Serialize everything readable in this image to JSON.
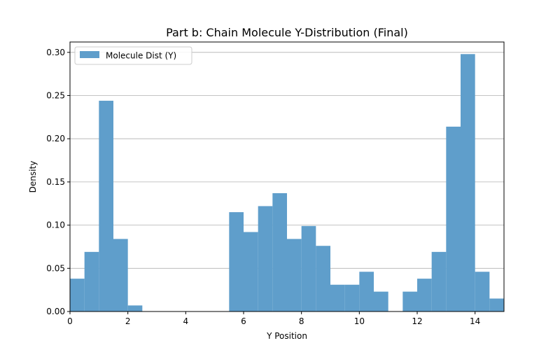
{
  "chart_data": {
    "type": "bar",
    "title": "Part b: Chain Molecule Y-Distribution (Final)",
    "xlabel": "Y Position",
    "ylabel": "Density",
    "xlim": [
      0,
      15
    ],
    "ylim": [
      0,
      0.312
    ],
    "x_ticks": [
      0,
      2,
      4,
      6,
      8,
      10,
      12,
      14
    ],
    "y_ticks": [
      0.0,
      0.05,
      0.1,
      0.15,
      0.2,
      0.25,
      0.3
    ],
    "grid": "horizontal",
    "legend": {
      "placement": "top-left",
      "entries": [
        "Molecule Dist (Y)"
      ]
    },
    "bar_color": "#5f9ecb",
    "bin_width": 0.5,
    "series": [
      {
        "name": "Molecule Dist (Y)",
        "bins": [
          {
            "x0": 0.0,
            "value": 0.038
          },
          {
            "x0": 0.5,
            "value": 0.069
          },
          {
            "x0": 1.0,
            "value": 0.244
          },
          {
            "x0": 1.5,
            "value": 0.084
          },
          {
            "x0": 2.0,
            "value": 0.007
          },
          {
            "x0": 2.5,
            "value": 0.0
          },
          {
            "x0": 3.0,
            "value": 0.0
          },
          {
            "x0": 3.5,
            "value": 0.0
          },
          {
            "x0": 4.0,
            "value": 0.0
          },
          {
            "x0": 4.5,
            "value": 0.0
          },
          {
            "x0": 5.0,
            "value": 0.0
          },
          {
            "x0": 5.5,
            "value": 0.115
          },
          {
            "x0": 6.0,
            "value": 0.092
          },
          {
            "x0": 6.5,
            "value": 0.122
          },
          {
            "x0": 7.0,
            "value": 0.137
          },
          {
            "x0": 7.5,
            "value": 0.084
          },
          {
            "x0": 8.0,
            "value": 0.099
          },
          {
            "x0": 8.5,
            "value": 0.076
          },
          {
            "x0": 9.0,
            "value": 0.031
          },
          {
            "x0": 9.5,
            "value": 0.031
          },
          {
            "x0": 10.0,
            "value": 0.046
          },
          {
            "x0": 10.5,
            "value": 0.023
          },
          {
            "x0": 11.0,
            "value": 0.0
          },
          {
            "x0": 11.5,
            "value": 0.023
          },
          {
            "x0": 12.0,
            "value": 0.038
          },
          {
            "x0": 12.5,
            "value": 0.069
          },
          {
            "x0": 13.0,
            "value": 0.214
          },
          {
            "x0": 13.5,
            "value": 0.298
          },
          {
            "x0": 14.0,
            "value": 0.046
          },
          {
            "x0": 14.5,
            "value": 0.015
          }
        ]
      }
    ]
  }
}
